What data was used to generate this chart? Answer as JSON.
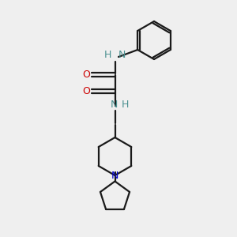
{
  "bg_color": "#efefef",
  "bond_color": "#1a1a1a",
  "N_color": "#0000cc",
  "O_color": "#cc0000",
  "NH_color": "#4a9090",
  "line_width": 1.6,
  "fig_size": [
    3.0,
    3.0
  ],
  "dpi": 100,
  "xlim": [
    0,
    10
  ],
  "ylim": [
    0,
    10
  ]
}
